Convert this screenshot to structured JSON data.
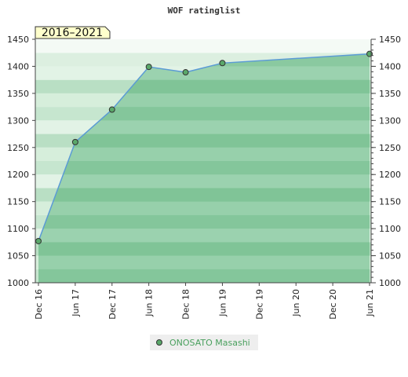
{
  "chart_data": {
    "type": "area",
    "title": "WOF ratinglist",
    "period_badge": "2016–2021",
    "xlabel": "",
    "ylabel": "",
    "ylim": [
      1000,
      1450
    ],
    "yticks": [
      1000,
      1050,
      1100,
      1150,
      1200,
      1250,
      1300,
      1350,
      1400,
      1450
    ],
    "x_tick_labels": [
      "Dec 16",
      "Jun 17",
      "Dec 17",
      "Jun 18",
      "Dec 18",
      "Jun 19",
      "Dec 19",
      "Jun 20",
      "Dec 20",
      "Jun 21"
    ],
    "x": [
      "2016-12",
      "2017-06",
      "2017-12",
      "2018-06",
      "2018-12",
      "2019-06",
      "2021-06"
    ],
    "series": [
      {
        "name": "ONOSATO Masashi",
        "values": [
          1077,
          1260,
          1320,
          1399,
          1389,
          1406,
          1423
        ]
      }
    ],
    "legend_position": "bottom",
    "grid": false,
    "colors": {
      "line": "#5b9bd5",
      "fill": "#6cbd8a",
      "marker": "#5aa86a",
      "legend_text": "#4aa05e",
      "badge_fill": "#ffffcc"
    }
  }
}
